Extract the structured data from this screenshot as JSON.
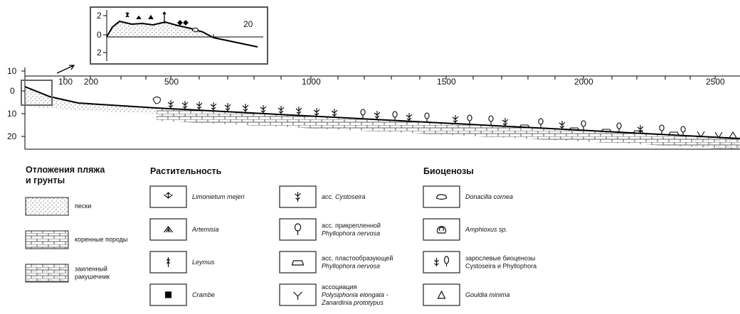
{
  "inset": {
    "ticks": [
      "2",
      "0",
      "2"
    ],
    "distance_label": "20"
  },
  "profile": {
    "depth_labels": [
      "10",
      "0",
      "10",
      "20"
    ],
    "distance_labels": [
      "100",
      "200",
      "500",
      "1000",
      "1500",
      "2000",
      "2500"
    ]
  },
  "legend": {
    "deposits": {
      "title": [
        "Отложения пляжа",
        "и грунты"
      ],
      "items": [
        [
          "пески"
        ],
        [
          "коренные породы"
        ],
        [
          "заиленный",
          "ракушечник"
        ]
      ]
    },
    "vegetation": {
      "title": "Растительность",
      "items": [
        [
          "Limonietum mejeri"
        ],
        [
          "Artemisia"
        ],
        [
          "Leymus"
        ],
        [
          "Crambe"
        ],
        [
          "асс. Cystoseira"
        ],
        [
          "асс. прикрепленной",
          "Phyllophora nervosa"
        ],
        [
          "асс. пластообразующей",
          "Phyllophora nervosa"
        ],
        [
          "ассоциация",
          "Polysiphonia elongata -",
          "Zanardinia prototypus"
        ]
      ]
    },
    "biocenoses": {
      "title": "Биоценозы",
      "items": [
        [
          "Donacilla cornea"
        ],
        [
          "Amphioxus sp."
        ],
        [
          "зарослевые биоценозы",
          "Cystoseira и Phyllophora"
        ],
        [
          "Gouldia minima"
        ]
      ]
    }
  }
}
